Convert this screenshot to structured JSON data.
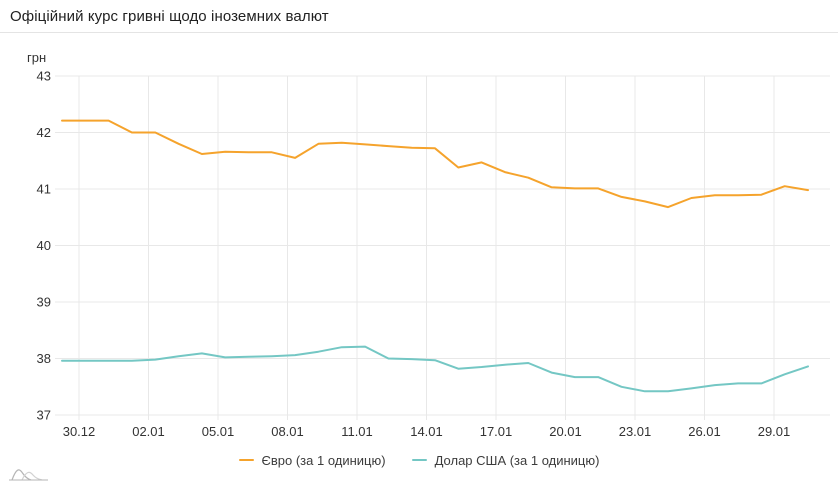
{
  "header": {
    "title": "Офіційний курс гривні щодо іноземних валют"
  },
  "axis": {
    "unit_label": "грн"
  },
  "chart_data": {
    "type": "line",
    "title": "Офіційний курс гривні щодо іноземних валют",
    "xlabel": "",
    "ylabel": "грн",
    "ylim": [
      37,
      43
    ],
    "y_ticks": [
      "43",
      "42",
      "41",
      "40",
      "39",
      "38",
      "37"
    ],
    "x_tick_labels": [
      "30.12",
      "02.01",
      "05.01",
      "08.01",
      "11.01",
      "14.01",
      "17.01",
      "20.01",
      "23.01",
      "26.01",
      "29.01"
    ],
    "x": [
      "30.12",
      "31.12",
      "01.01",
      "02.01",
      "03.01",
      "04.01",
      "05.01",
      "06.01",
      "07.01",
      "08.01",
      "09.01",
      "10.01",
      "11.01",
      "12.01",
      "13.01",
      "14.01",
      "15.01",
      "16.01",
      "17.01",
      "18.01",
      "19.01",
      "20.01",
      "21.01",
      "22.01",
      "23.01",
      "24.01",
      "25.01",
      "26.01",
      "27.01",
      "28.01",
      "29.01",
      "30.01",
      "31.01"
    ],
    "grid": true,
    "legend_position": "bottom",
    "series": [
      {
        "name": "Євро (за 1 одиницю)",
        "color": "#f5a32c",
        "values": [
          42.21,
          42.21,
          42.21,
          42.0,
          42.0,
          41.8,
          41.62,
          41.66,
          41.65,
          41.65,
          41.55,
          41.8,
          41.82,
          41.79,
          41.76,
          41.73,
          41.72,
          41.38,
          41.47,
          41.3,
          41.2,
          41.03,
          41.01,
          41.01,
          40.86,
          40.78,
          40.68,
          40.84,
          40.89,
          40.89,
          40.9,
          41.05,
          40.98
        ]
      },
      {
        "name": "Долар США (за 1 одиницю)",
        "color": "#74c7c4",
        "values": [
          37.96,
          37.96,
          37.96,
          37.96,
          37.98,
          38.04,
          38.09,
          38.02,
          38.03,
          38.04,
          38.06,
          38.12,
          38.2,
          38.21,
          38.0,
          37.99,
          37.97,
          37.82,
          37.85,
          37.89,
          37.92,
          37.75,
          37.67,
          37.67,
          37.5,
          37.42,
          37.42,
          37.47,
          37.53,
          37.56,
          37.56,
          37.72,
          37.86
        ]
      }
    ]
  },
  "colors": {
    "grid_line": "#e8e8e8",
    "axis_text": "#333333",
    "title_text": "#212121",
    "header_border": "#e4e4e4",
    "watermark": "#b5b5b5",
    "watermark_light": "#d2d2d2"
  }
}
